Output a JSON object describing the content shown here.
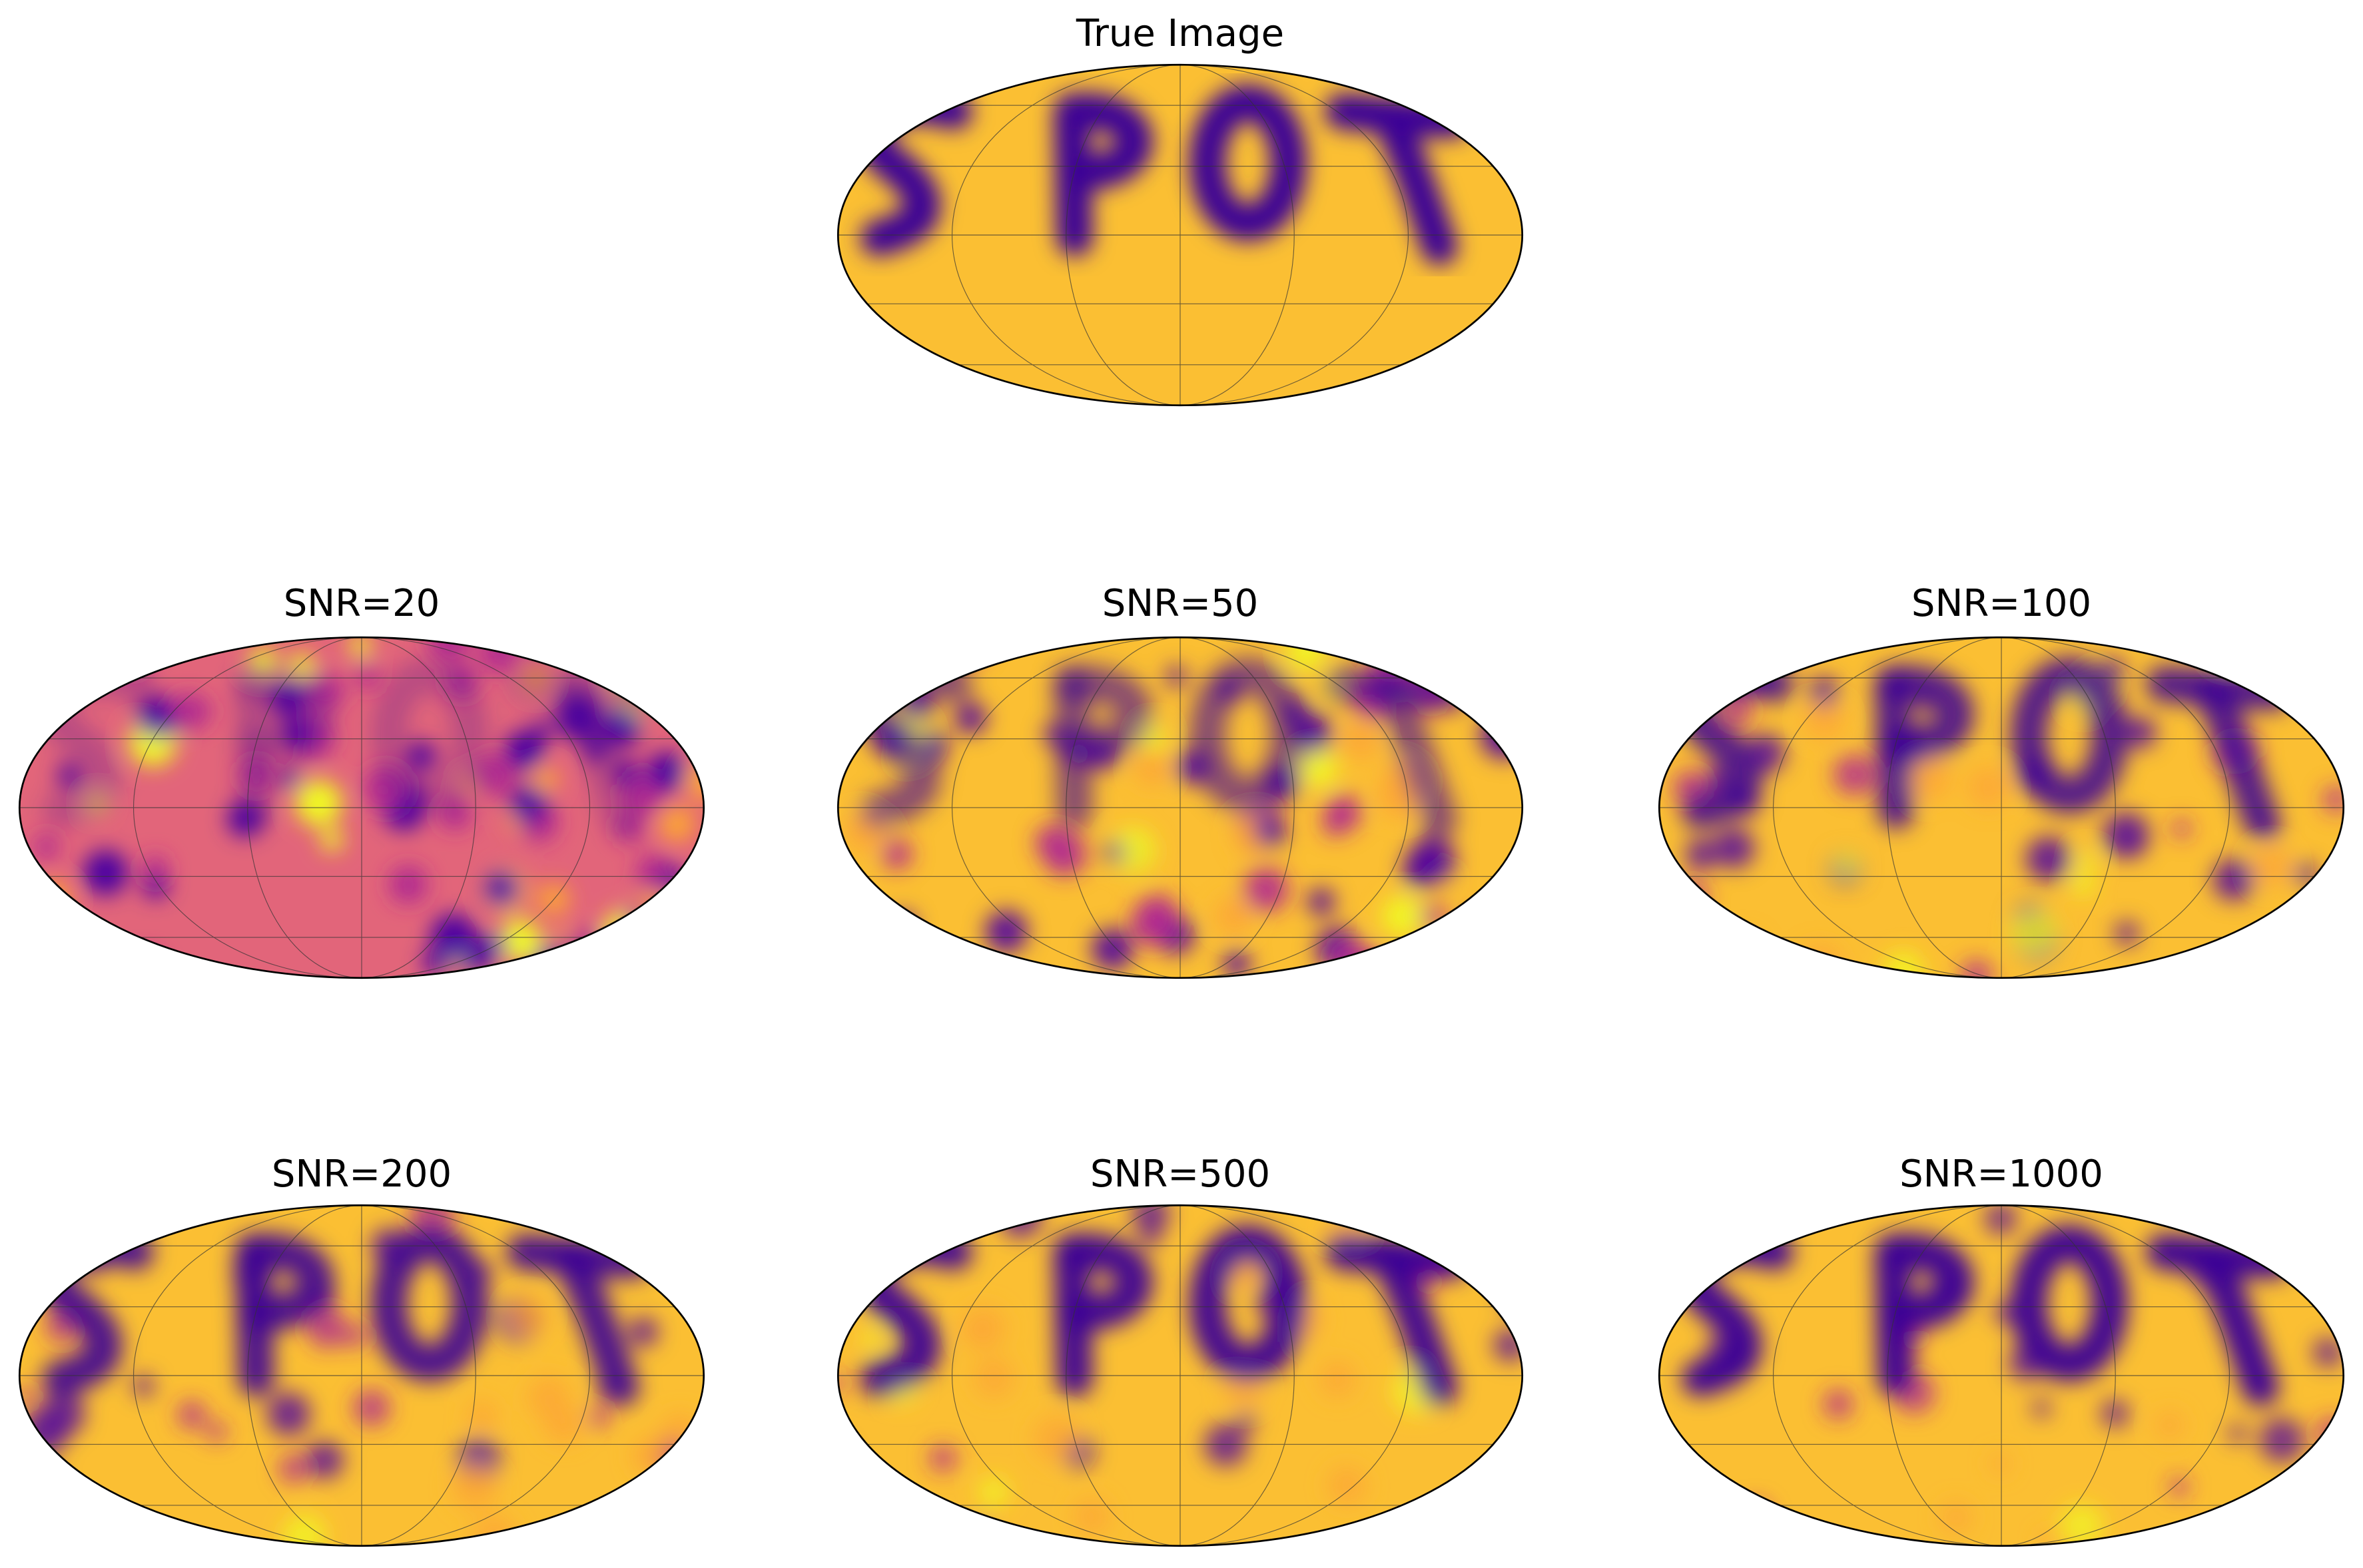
{
  "panels": [
    {
      "title": "True Image"
    },
    {
      "title": "SNR=20"
    },
    {
      "title": "SNR=50"
    },
    {
      "title": "SNR=100"
    },
    {
      "title": "SNR=200"
    },
    {
      "title": "SNR=500"
    },
    {
      "title": "SNR=1000"
    }
  ]
}
